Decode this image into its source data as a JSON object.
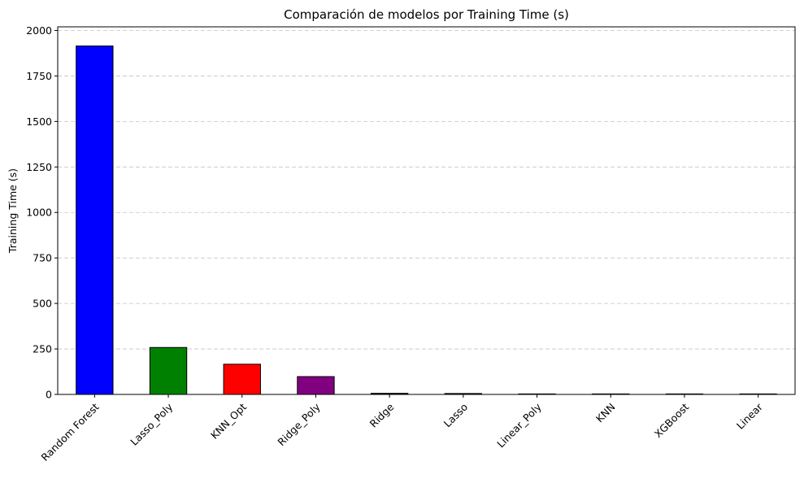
{
  "chart_data": {
    "type": "bar",
    "title": "Comparación de modelos por Training Time (s)",
    "xlabel": "",
    "ylabel": "Training Time (s)",
    "categories": [
      "Random Forest",
      "Lasso_Poly",
      "KNN_Opt",
      "Ridge_Poly",
      "Ridge",
      "Lasso",
      "Linear_Poly",
      "KNN",
      "XGBoost",
      "Linear"
    ],
    "values": [
      1915,
      258,
      166,
      98,
      6,
      5,
      2,
      1.5,
      1,
      0.5
    ],
    "colors": [
      "#0000ff",
      "#008000",
      "#ff0000",
      "#800080",
      "#000000",
      "#000000",
      "#000000",
      "#000000",
      "#000000",
      "#000000"
    ],
    "ylim": [
      0,
      2020
    ],
    "yticks": [
      0,
      250,
      500,
      750,
      1000,
      1250,
      1500,
      1750,
      2000
    ],
    "grid": "y-dashed",
    "legend": "none"
  }
}
